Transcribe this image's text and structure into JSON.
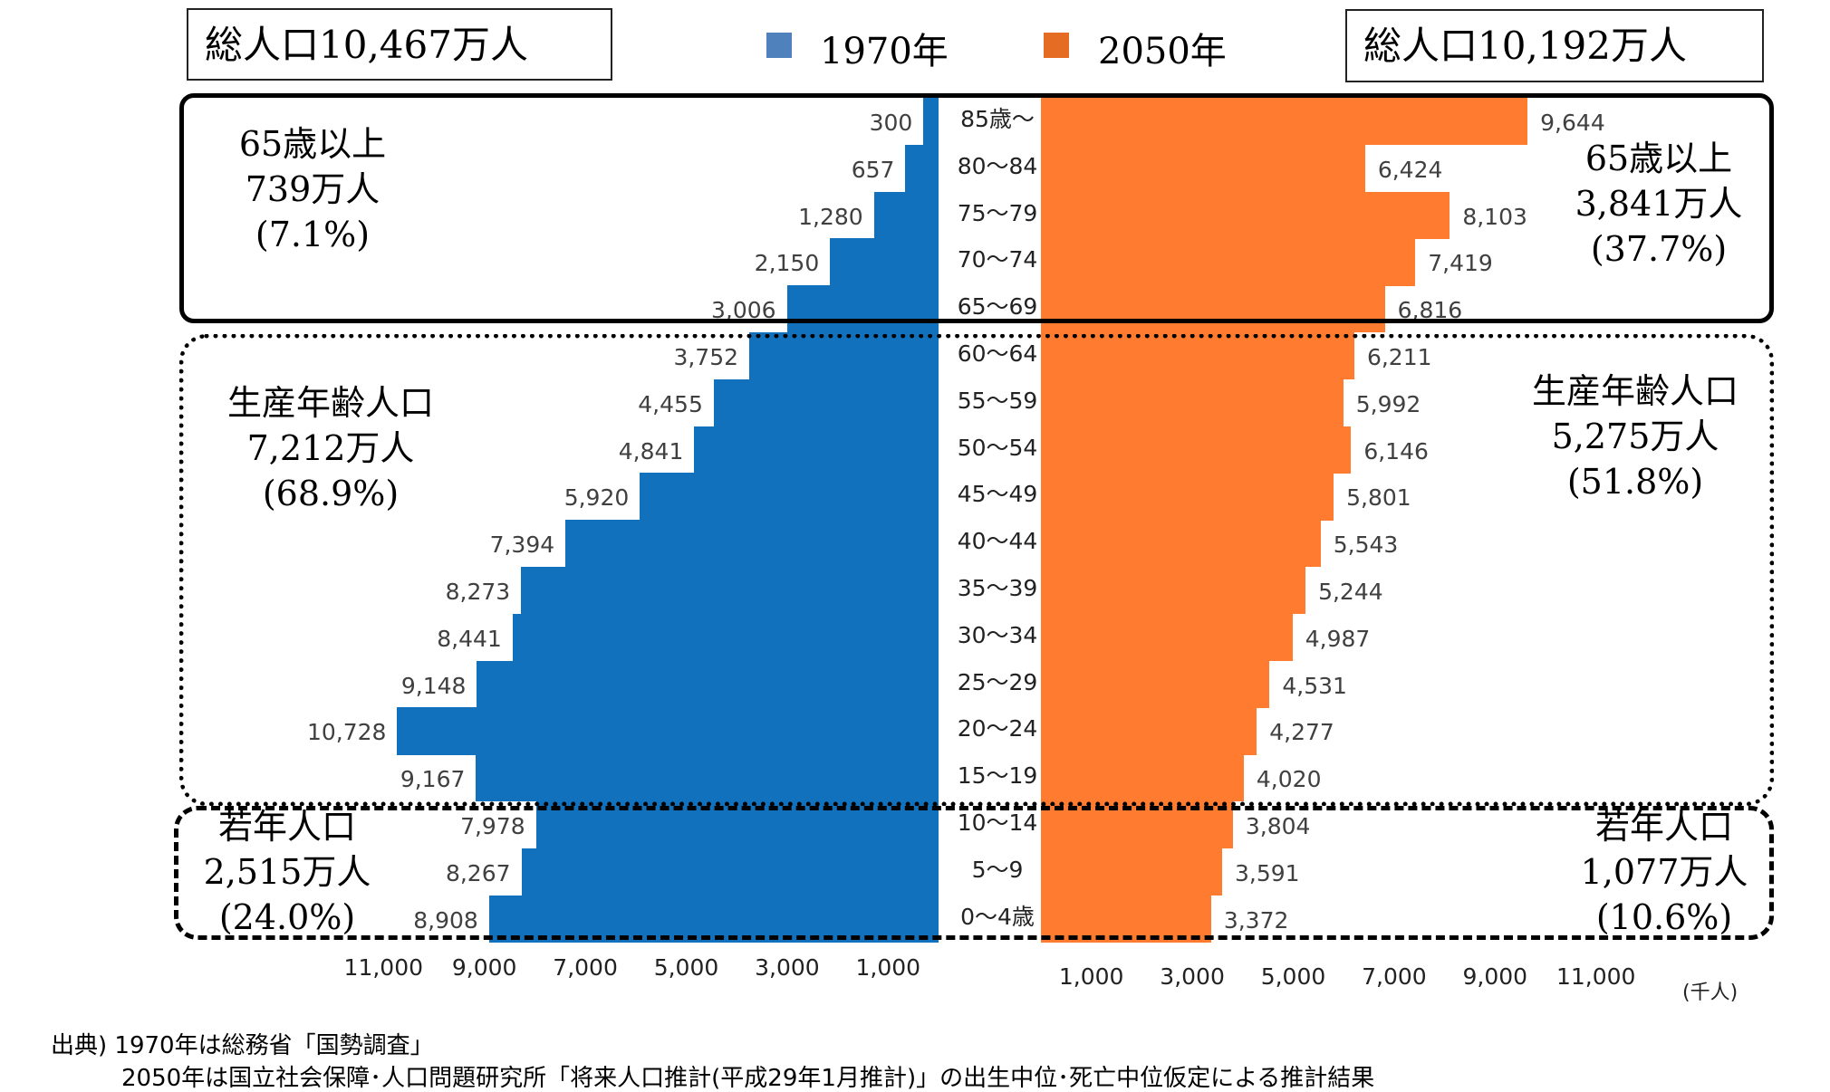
{
  "totals": {
    "left": "総人口10,467万人",
    "right": "総人口10,192万人"
  },
  "legend": [
    {
      "label": "1970年",
      "color": "#4F81BD"
    },
    {
      "label": "2050年",
      "color": "#E46C23"
    }
  ],
  "groups": {
    "left": [
      {
        "lines": [
          "65歳以上",
          "739万人",
          "(7.1%)"
        ]
      },
      {
        "lines": [
          "生産年齢人口",
          "7,212万人",
          "(68.9%)"
        ]
      },
      {
        "lines": [
          "若年人口",
          "2,515万人",
          "(24.0%)"
        ]
      }
    ],
    "right": [
      {
        "lines": [
          "65歳以上",
          "3,841万人",
          "(37.7%)"
        ]
      },
      {
        "lines": [
          "生産年齢人口",
          "5,275万人",
          "(51.8%)"
        ]
      },
      {
        "lines": [
          "若年人口",
          "1,077万人",
          "(10.6%)"
        ]
      }
    ]
  },
  "chart_data": {
    "type": "bar",
    "orientation": "population-pyramid",
    "categories": [
      "85歳～",
      "80～84",
      "75～79",
      "70～74",
      "65～69",
      "60～64",
      "55～59",
      "50～54",
      "45～49",
      "40～44",
      "35～39",
      "30～34",
      "25～29",
      "20～24",
      "15～19",
      "10～14",
      "5～9",
      "0～4歳"
    ],
    "series": [
      {
        "name": "1970年",
        "color": "#1271BD",
        "values": [
          300,
          657,
          1280,
          2150,
          3006,
          3752,
          4455,
          4841,
          5920,
          7394,
          8273,
          8441,
          9148,
          10728,
          9167,
          7978,
          8267,
          8908
        ],
        "labels": [
          "300",
          "657",
          "1,280",
          "2,150",
          "3,006",
          "3,752",
          "4,455",
          "4,841",
          "5,920",
          "7,394",
          "8,273",
          "8,441",
          "9,148",
          "10,728",
          "9,167",
          "7,978",
          "8,267",
          "8,908"
        ]
      },
      {
        "name": "2050年",
        "color": "#FF7B30",
        "values": [
          9644,
          6424,
          8103,
          7419,
          6816,
          6211,
          5992,
          6146,
          5801,
          5543,
          5244,
          4987,
          4531,
          4277,
          4020,
          3804,
          3591,
          3372
        ],
        "labels": [
          "9,644",
          "6,424",
          "8,103",
          "7,419",
          "6,816",
          "6,211",
          "5,992",
          "6,146",
          "5,801",
          "5,543",
          "5,244",
          "4,987",
          "4,531",
          "4,277",
          "4,020",
          "3,804",
          "3,591",
          "3,372"
        ]
      }
    ],
    "xticks": [
      1000,
      3000,
      5000,
      7000,
      9000,
      11000
    ],
    "xtick_labels": [
      "1,000",
      "3,000",
      "5,000",
      "7,000",
      "9,000",
      "11,000"
    ],
    "unit": "(千人)",
    "xlim": [
      0,
      11000
    ]
  },
  "source": {
    "line1": "出典) 1970年は総務省「国勢調査」",
    "line2": "2050年は国立社会保障･人口問題研究所「将来人口推計(平成29年1月推計)」の出生中位･死亡中位仮定による推計結果"
  }
}
